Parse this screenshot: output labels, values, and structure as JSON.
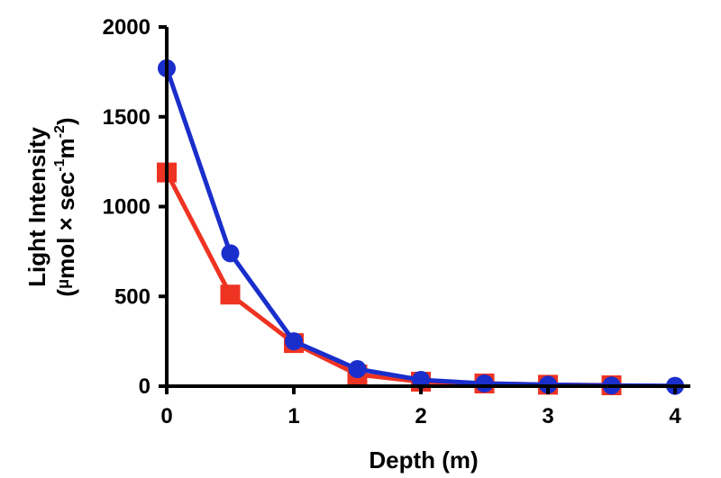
{
  "chart_data": {
    "type": "line",
    "xlabel": "Depth (m)",
    "ylabel": {
      "line1": "Light Intensity",
      "line2_open": "(",
      "line2_mu": "μ",
      "line2_mid": "mol × sec",
      "line2_exp1": "-1",
      "line2_m": "m",
      "line2_exp2": "-2",
      "line2_close": ")"
    },
    "xlim": [
      0,
      4
    ],
    "ylim": [
      0,
      2000
    ],
    "xticks": [
      "0",
      "1",
      "2",
      "3",
      "4"
    ],
    "yticks": [
      "0",
      "500",
      "1000",
      "1500",
      "2000"
    ],
    "grid": false,
    "series": [
      {
        "marker": "square",
        "color": "#ee3322",
        "x": [
          0,
          0.5,
          1,
          1.5,
          2,
          2.5,
          3,
          3.5
        ],
        "values": [
          1190,
          510,
          240,
          65,
          25,
          15,
          8,
          5
        ]
      },
      {
        "marker": "circle",
        "color": "#1a2ecc",
        "x": [
          0,
          0.5,
          1,
          1.5,
          2,
          2.5,
          3,
          3.5,
          4
        ],
        "values": [
          1770,
          740,
          250,
          95,
          35,
          15,
          8,
          4,
          2
        ]
      }
    ]
  }
}
